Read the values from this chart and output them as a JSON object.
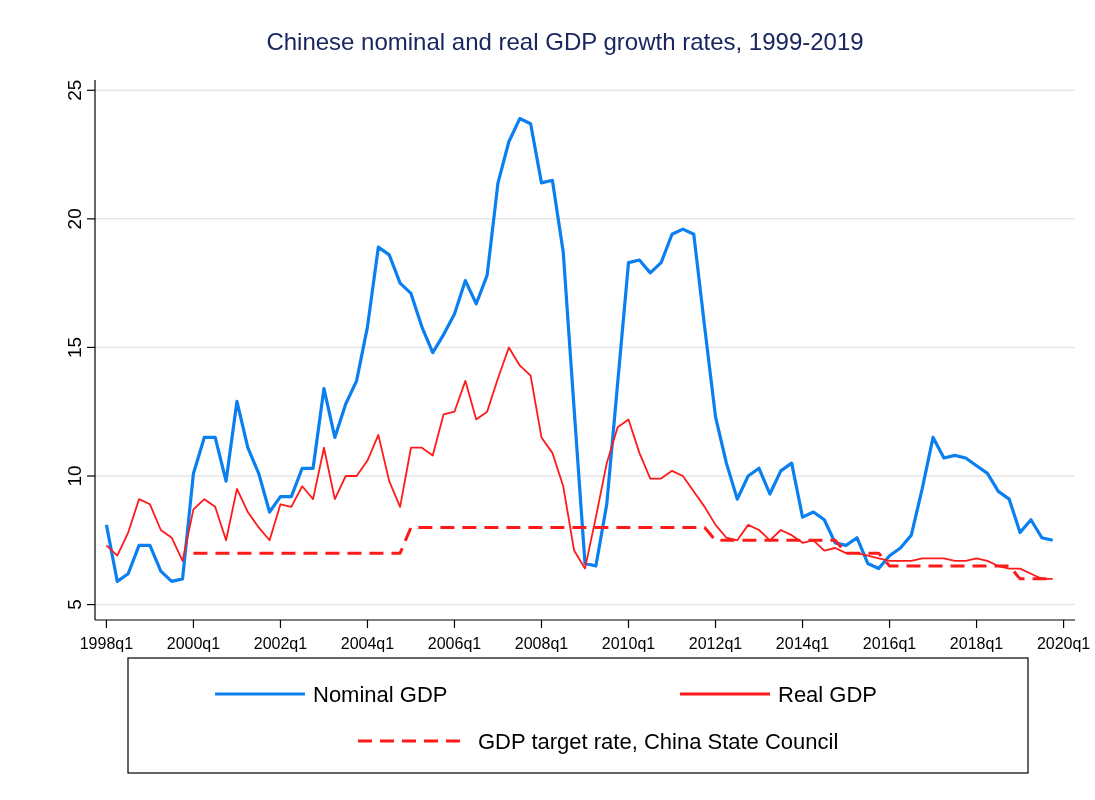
{
  "chart_data": {
    "type": "line",
    "title": "Chinese nominal and real GDP growth rates, 1999-2019",
    "categories": [
      "1998q1",
      null,
      null,
      null,
      null,
      null,
      null,
      null,
      "2000q1",
      null,
      null,
      null,
      null,
      null,
      null,
      null,
      "2002q1",
      null,
      null,
      null,
      null,
      null,
      null,
      null,
      "2004q1",
      null,
      null,
      null,
      null,
      null,
      null,
      null,
      "2006q1",
      null,
      null,
      null,
      null,
      null,
      null,
      null,
      "2008q1",
      null,
      null,
      null,
      null,
      null,
      null,
      null,
      "2010q1",
      null,
      null,
      null,
      null,
      null,
      null,
      null,
      "2012q1",
      null,
      null,
      null,
      null,
      null,
      null,
      null,
      "2014q1",
      null,
      null,
      null,
      null,
      null,
      null,
      null,
      "2016q1",
      null,
      null,
      null,
      null,
      null,
      null,
      null,
      "2018q1",
      null,
      null,
      null,
      null,
      null,
      null,
      null,
      "2020q1"
    ],
    "series": [
      {
        "name": "Nominal GDP",
        "color": "#0a7ff0",
        "values": [
          8.1,
          5.9,
          6.2,
          7.3,
          7.3,
          6.3,
          5.9,
          6.0,
          10.1,
          11.5,
          11.5,
          9.8,
          12.9,
          11.1,
          10.1,
          8.6,
          9.2,
          9.2,
          10.3,
          10.3,
          13.4,
          11.5,
          12.8,
          13.7,
          15.8,
          18.9,
          18.6,
          17.5,
          17.1,
          15.8,
          14.8,
          15.5,
          16.3,
          17.6,
          16.7,
          17.8,
          21.4,
          23.0,
          23.9,
          23.7,
          21.4,
          21.5,
          18.7,
          12.6,
          6.6,
          6.5,
          8.9,
          13.6,
          18.3,
          18.4,
          17.9,
          18.3,
          19.4,
          19.6,
          19.4,
          15.8,
          12.3,
          10.5,
          9.1,
          10.0,
          10.3,
          9.3,
          10.2,
          10.5,
          8.4,
          8.6,
          8.3,
          7.4,
          7.3,
          7.6,
          6.6,
          6.4,
          6.9,
          7.2,
          7.7,
          9.5,
          11.5,
          10.7,
          10.8,
          10.7,
          10.4,
          10.1,
          9.4,
          9.1,
          7.8,
          8.3,
          7.6,
          7.5,
          null
        ]
      },
      {
        "name": "Real GDP",
        "color": "#ff1a1a",
        "values": [
          7.3,
          6.9,
          7.8,
          9.1,
          8.9,
          7.9,
          7.6,
          6.7,
          8.7,
          9.1,
          8.8,
          7.5,
          9.5,
          8.6,
          8.0,
          7.5,
          8.9,
          8.8,
          9.6,
          9.1,
          11.1,
          9.1,
          10.0,
          10.0,
          10.6,
          11.6,
          9.8,
          8.8,
          11.1,
          11.1,
          10.8,
          12.4,
          12.5,
          13.7,
          12.2,
          12.5,
          13.8,
          15.0,
          14.3,
          13.9,
          11.5,
          10.9,
          9.6,
          7.1,
          6.4,
          8.4,
          10.5,
          11.9,
          12.2,
          10.9,
          9.9,
          9.9,
          10.2,
          10.0,
          9.4,
          8.8,
          8.1,
          7.6,
          7.5,
          8.1,
          7.9,
          7.5,
          7.9,
          7.7,
          7.4,
          7.5,
          7.1,
          7.2,
          7.0,
          7.0,
          6.9,
          6.8,
          6.7,
          6.7,
          6.7,
          6.8,
          6.8,
          6.8,
          6.7,
          6.7,
          6.8,
          6.7,
          6.5,
          6.4,
          6.4,
          6.2,
          6.0,
          6.0,
          null
        ]
      },
      {
        "name": "GDP target rate, China State Council",
        "color": "#ff1a1a",
        "line_style": "dashed",
        "values": [
          null,
          null,
          null,
          null,
          null,
          null,
          null,
          null,
          7,
          7,
          7,
          7,
          7,
          7,
          7,
          7,
          7,
          7,
          7,
          7,
          7,
          7,
          7,
          7,
          7,
          7,
          7,
          7,
          8,
          8,
          8,
          8,
          8,
          8,
          8,
          8,
          8,
          8,
          8,
          8,
          8,
          8,
          8,
          8,
          8,
          8,
          8,
          8,
          8,
          8,
          8,
          8,
          8,
          8,
          8,
          8,
          7.5,
          7.5,
          7.5,
          7.5,
          7.5,
          7.5,
          7.5,
          7.5,
          7.5,
          7.5,
          7.5,
          7.5,
          7,
          7,
          7,
          7,
          6.5,
          6.5,
          6.5,
          6.5,
          6.5,
          6.5,
          6.5,
          6.5,
          6.5,
          6.5,
          6.5,
          6.5,
          6,
          6,
          6,
          6,
          null
        ]
      }
    ],
    "ylim": [
      4.4,
      25.4
    ],
    "yticks": [
      5,
      10,
      15,
      20,
      25
    ],
    "grid": "y",
    "legend": "bottom",
    "line_style": "solid"
  }
}
